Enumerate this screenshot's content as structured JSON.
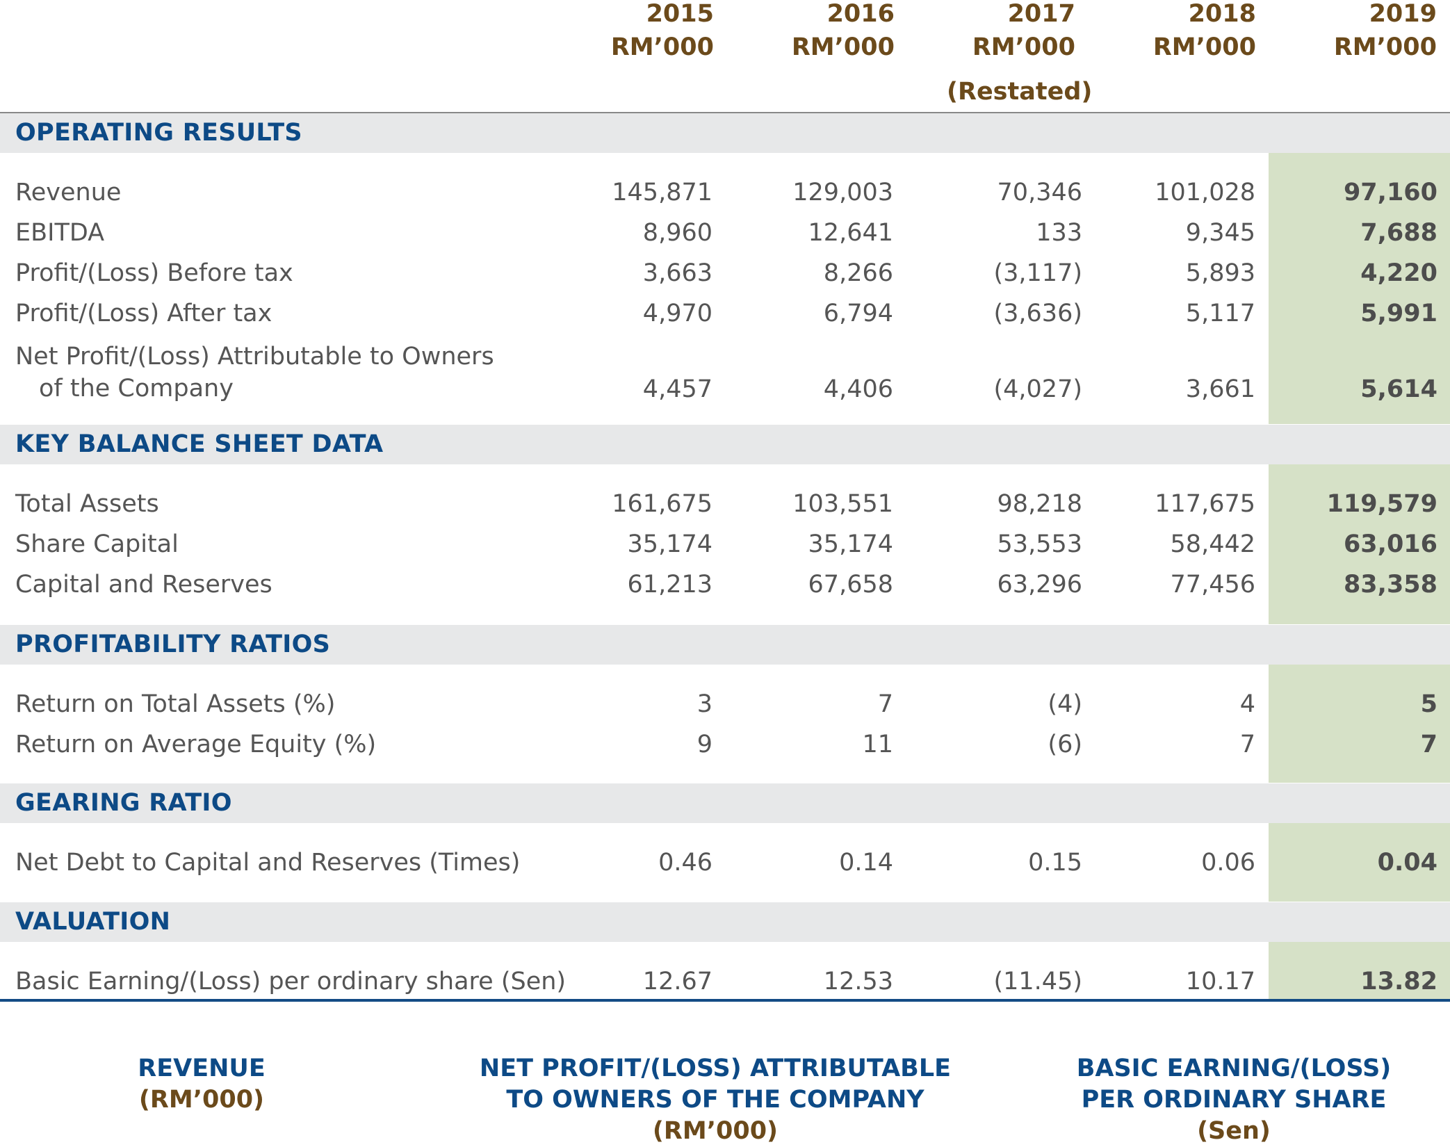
{
  "columns": [
    {
      "year": "2015",
      "unit": "RM’000",
      "note": ""
    },
    {
      "year": "2016",
      "unit": "RM’000",
      "note": ""
    },
    {
      "year": "2017",
      "unit": "RM’000",
      "note": "(Restated)"
    },
    {
      "year": "2018",
      "unit": "RM’000",
      "note": ""
    },
    {
      "year": "2019",
      "unit": "RM’000",
      "note": ""
    }
  ],
  "highlight_color": "#d6e1c7",
  "sections": {
    "operating": {
      "title": "OPERATING RESULTS",
      "rows": [
        {
          "label": "Revenue",
          "values": [
            "145,871",
            "129,003",
            "70,346",
            "101,028",
            "97,160"
          ]
        },
        {
          "label": "EBITDA",
          "values": [
            "8,960",
            "12,641",
            "133",
            "9,345",
            "7,688"
          ]
        },
        {
          "label": "Profit/(Loss) Before tax",
          "values": [
            "3,663",
            "8,266",
            "(3,117)",
            "5,893",
            "4,220"
          ]
        },
        {
          "label": "Profit/(Loss) After tax",
          "values": [
            "4,970",
            "6,794",
            "(3,636)",
            "5,117",
            "5,991"
          ]
        },
        {
          "label": "Net Profit/(Loss) Attributable to Owners",
          "label2": "of the Company",
          "values": [
            "4,457",
            "4,406",
            "(4,027)",
            "3,661",
            "5,614"
          ]
        }
      ]
    },
    "balance": {
      "title": "KEY BALANCE SHEET DATA",
      "rows": [
        {
          "label": "Total Assets",
          "values": [
            "161,675",
            "103,551",
            "98,218",
            "117,675",
            "119,579"
          ]
        },
        {
          "label": "Share Capital",
          "values": [
            "35,174",
            "35,174",
            "53,553",
            "58,442",
            "63,016"
          ]
        },
        {
          "label": "Capital and Reserves",
          "values": [
            "61,213",
            "67,658",
            "63,296",
            "77,456",
            "83,358"
          ]
        }
      ]
    },
    "profitability": {
      "title": "PROFITABILITY RATIOS",
      "rows": [
        {
          "label": "Return on Total Assets (%)",
          "values": [
            "3",
            "7",
            "(4)",
            "4",
            "5"
          ]
        },
        {
          "label": "Return on Average Equity (%)",
          "values": [
            "9",
            "11",
            "(6)",
            "7",
            "7"
          ]
        }
      ]
    },
    "gearing": {
      "title": "GEARING RATIO",
      "rows": [
        {
          "label": "Net Debt to Capital and Reserves (Times)",
          "values": [
            "0.46",
            "0.14",
            "0.15",
            "0.06",
            "0.04"
          ]
        }
      ]
    },
    "valuation": {
      "title": "VALUATION",
      "rows": [
        {
          "label": "Basic Earning/(Loss) per ordinary share (Sen)",
          "values": [
            "12.67",
            "12.53",
            "(11.45)",
            "10.17",
            "13.82"
          ]
        }
      ]
    }
  },
  "charts": [
    {
      "title_lines": [
        "REVENUE"
      ],
      "unit": "(RM’000)"
    },
    {
      "title_lines": [
        "NET PROFIT/(LOSS) ATTRIBUTABLE",
        "TO OWNERS OF THE COMPANY"
      ],
      "unit": "(RM’000)"
    },
    {
      "title_lines": [
        "BASIC EARNING/(LOSS)",
        "PER ORDINARY SHARE"
      ],
      "unit": "(Sen)"
    }
  ]
}
